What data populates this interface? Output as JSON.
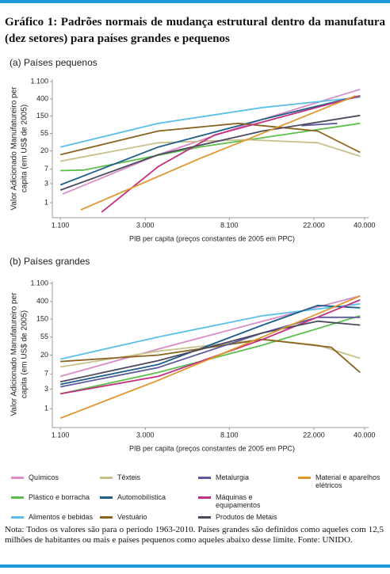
{
  "header": {
    "title": "Gráfico 1: Padrões normais de mudança estrutural dentro da manufatura (dez setores) para países grandes e pequenos"
  },
  "chart_data": [
    {
      "type": "line",
      "subtitle": "(a) Países pequenos",
      "ylabel": [
        "Valor Adicionado Manufatureiro per",
        "capita (em US$ de 2005)"
      ],
      "xlabel": "PIB per capita (preços constantes de 2005 em PPC)",
      "xscale": "log",
      "yscale": "log",
      "xlim": [
        1000,
        42000
      ],
      "ylim": [
        0.42,
        1260
      ],
      "xticks": [
        {
          "value": 1100,
          "label": "1.100"
        },
        {
          "value": 3000,
          "label": "3.000"
        },
        {
          "value": 8100,
          "label": "8.100"
        },
        {
          "value": 22000,
          "label": "22.000"
        },
        {
          "value": 40000,
          "label": "40.000"
        }
      ],
      "yticks": [
        1,
        3,
        7,
        20,
        55,
        150,
        400,
        {
          "value": 1100,
          "label": "1.100"
        }
      ],
      "series": [
        {
          "name": "Químicos",
          "color": "#d98cc6",
          "x": [
            1130,
            3500,
            12000,
            38000
          ],
          "values": [
            1.65,
            16,
            124,
            700
          ]
        },
        {
          "name": "Plástico e borracha",
          "color": "#5cbf4a",
          "x": [
            1100,
            1450,
            5700,
            38000
          ],
          "values": [
            6.4,
            6.6,
            25,
            98
          ]
        },
        {
          "name": "Alimentos e bebidas",
          "color": "#5bc0e8",
          "x": [
            1100,
            3500,
            12000,
            38000
          ],
          "values": [
            25,
            98,
            245,
            442
          ]
        },
        {
          "name": "Têxteis",
          "color": "#c8c08a",
          "x": [
            1100,
            3500,
            9900,
            23000,
            38000
          ],
          "values": [
            11,
            32,
            38,
            32,
            14.6
          ]
        },
        {
          "name": "Automobilística",
          "color": "#1e5f8a",
          "x": [
            1100,
            3500,
            12000,
            38000
          ],
          "values": [
            2.8,
            25,
            124,
            483
          ]
        },
        {
          "name": "Vestuário",
          "color": "#8a6420",
          "x": [
            1100,
            3500,
            9000,
            23000,
            38000
          ],
          "values": [
            16,
            63,
            98,
            63,
            18.3
          ]
        },
        {
          "name": "Metalurgia",
          "color": "#5b5a9c",
          "x": [
            19000,
            29000
          ],
          "values": [
            86,
            98
          ]
        },
        {
          "name": "Máquinas e equipamentos",
          "color": "#c3307f",
          "x": [
            1790,
            3500,
            6800,
            38000
          ],
          "values": [
            0.58,
            8.1,
            50,
            483
          ]
        },
        {
          "name": "Produtos de Metais",
          "color": "#4d4a5e",
          "x": [
            1100,
            3500,
            12000,
            38000
          ],
          "values": [
            2.07,
            16,
            63,
            155
          ]
        },
        {
          "name": "Material e aparelhos elétricos",
          "color": "#e0962e",
          "x": [
            1400,
            5700,
            36000
          ],
          "values": [
            0.66,
            12.8,
            483
          ]
        }
      ]
    },
    {
      "type": "line",
      "subtitle": "(b) Países grandes",
      "ylabel": [
        "Valor Adicionado Manufatureiro per",
        "capita (em US$ de 2005)"
      ],
      "xlabel": "PIB per capita (preços constantes de 2005 em PPC)",
      "xscale": "log",
      "yscale": "log",
      "xlim": [
        1000,
        42000
      ],
      "ylim": [
        0.35,
        1250
      ],
      "xticks": [
        {
          "value": 1100,
          "label": "1.100"
        },
        {
          "value": 3000,
          "label": "3.000"
        },
        {
          "value": 8100,
          "label": "8.100"
        },
        {
          "value": 22000,
          "label": "22.000"
        },
        {
          "value": 40000,
          "label": "40.000"
        }
      ],
      "yticks": [
        1,
        3,
        7,
        20,
        55,
        150,
        400,
        {
          "value": 1100,
          "label": "1.100"
        }
      ],
      "series": [
        {
          "x": [
            1100,
            3500,
            12000,
            38000
          ],
          "values": [
            6.1,
            28,
            133,
            545
          ]
        },
        {
          "x": [
            1100,
            3500,
            12000,
            38000
          ],
          "values": [
            2.3,
            7.6,
            35,
            180
          ]
        },
        {
          "x": [
            1100,
            3500,
            12000,
            38000
          ],
          "values": [
            16,
            55,
            180,
            350
          ]
        },
        {
          "x": [
            1100,
            3500,
            12000,
            23000,
            38000
          ],
          "values": [
            10.3,
            25,
            48,
            35,
            16.7
          ]
        },
        {
          "x": [
            1100,
            3500,
            12000,
            23000,
            38000
          ],
          "values": [
            3.9,
            11.8,
            107,
            320,
            280
          ]
        },
        {
          "x": [
            1100,
            3500,
            12000,
            27000,
            38000
          ],
          "values": [
            14,
            20,
            48,
            31,
            7.6
          ]
        },
        {
          "x": [
            1100,
            3500,
            12000,
            23000,
            38000
          ],
          "values": [
            3.4,
            10,
            69,
            165,
            165
          ]
        },
        {
          "x": [
            1100,
            3500,
            12000,
            38000
          ],
          "values": [
            2.3,
            6.1,
            48,
            437
          ]
        },
        {
          "x": [
            1100,
            3500,
            12000,
            23000,
            38000
          ],
          "values": [
            4.5,
            14.7,
            69,
            133,
            107
          ]
        },
        {
          "x": [
            1100,
            3500,
            12000,
            38000
          ],
          "values": [
            0.59,
            4.9,
            55,
            545
          ]
        }
      ]
    }
  ],
  "note": "Nota: Todos os valores são para o período 1963-2010. Países grandes são definidos como aqueles com 12,5 milhões de habitantes ou mais e países pequenos como aqueles abaixo desse limite. Fonte: UNIDO."
}
